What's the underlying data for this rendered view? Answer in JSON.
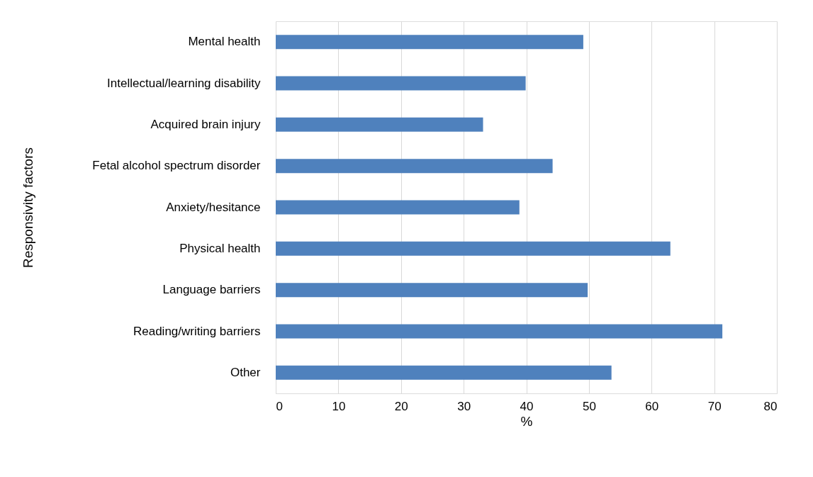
{
  "chart_data": {
    "type": "bar",
    "orientation": "horizontal",
    "xlabel": "%",
    "ylabel": "Responsivity factors",
    "categories": [
      "Mental health",
      "Intellectual/learning disability",
      "Acquired brain injury",
      "Fetal alcohol spectrum disorder",
      "Anxiety/hesitance",
      "Physical health",
      "Language barriers",
      "Reading/writing barriers",
      "Other"
    ],
    "values": [
      49.1,
      39.9,
      33.1,
      44.2,
      38.9,
      63.0,
      49.8,
      71.3,
      53.6
    ],
    "color": "#4f81bd",
    "xlim": [
      0,
      80
    ],
    "xticks": [
      0,
      10,
      20,
      30,
      40,
      50,
      60,
      70,
      80
    ],
    "grid": "x"
  }
}
